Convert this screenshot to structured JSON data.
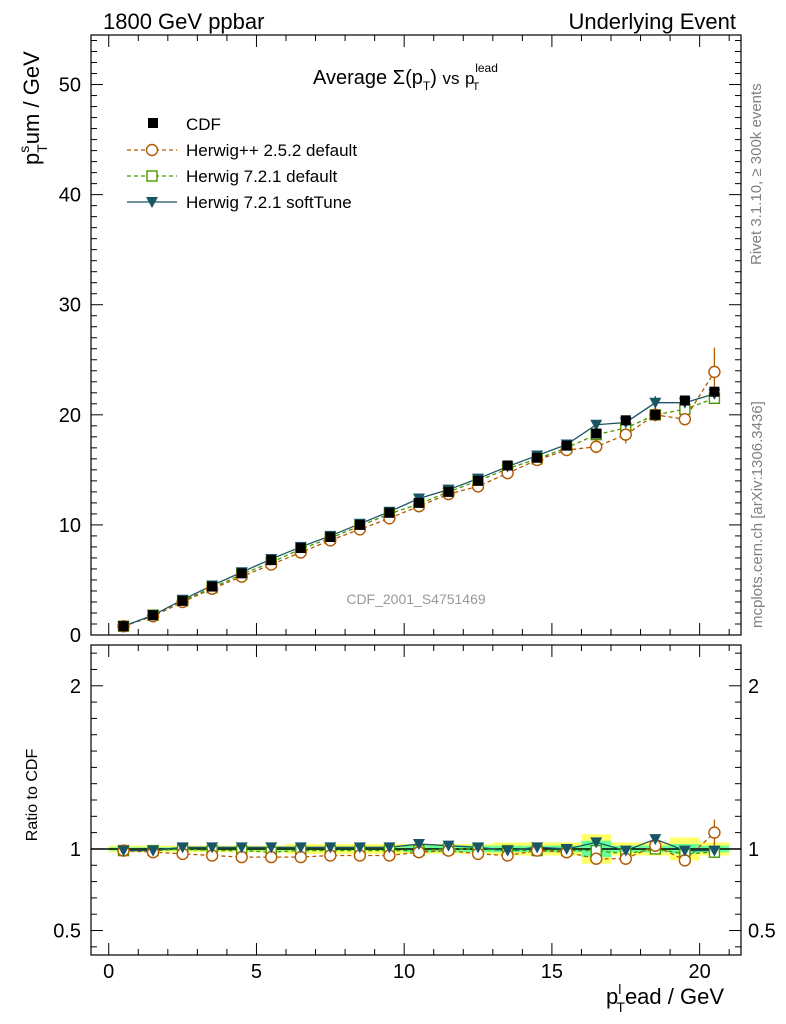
{
  "header": {
    "left": "1800 GeV ppbar",
    "right": "Underlying Event"
  },
  "side_labels": {
    "rivet": "Rivet 3.1.10, ≥ 300k events",
    "mcplots": "mcplots.cern.ch [arXiv:1306.3436]"
  },
  "watermark": "CDF_2001_S4751469",
  "colors": {
    "cdf": "#000000",
    "herwigpp": "#b35900",
    "herwig721": "#4d9900",
    "softtune": "#1a5566",
    "band_outer": "#ffff66",
    "band_inner": "#66ff99"
  },
  "chart_data": [
    {
      "type": "scatter",
      "panel": "main",
      "title": "Average Σ(p_T) vs p_T^lead",
      "title_parts": {
        "avg": "Average",
        "sigma": "Σ(p",
        "T": "T",
        "close": ")",
        "vs": "vs",
        "p": "p",
        "lead": "lead"
      },
      "ylabel": "p_T^sum / GeV",
      "ylabel_parts": {
        "p": "p",
        "sup": "s",
        "sub": "T",
        "rest": "um / GeV"
      },
      "xlim": [
        -0.6,
        21.4
      ],
      "ylim": [
        0,
        54.5
      ],
      "yticks": [
        0,
        10,
        20,
        30,
        40,
        50
      ],
      "ytick_labels": [
        "0",
        "10",
        "20",
        "30",
        "40",
        "50"
      ],
      "legend_position": "top-left",
      "x": [
        0.5,
        1.5,
        2.5,
        3.5,
        4.5,
        5.5,
        6.5,
        7.5,
        8.5,
        9.5,
        10.5,
        11.5,
        12.5,
        13.5,
        14.5,
        15.5,
        16.5,
        17.5,
        18.5,
        19.5,
        20.5
      ],
      "series": [
        {
          "name": "CDF",
          "marker": "square-filled",
          "values": [
            0.8,
            1.8,
            3.1,
            4.4,
            5.6,
            6.8,
            7.9,
            8.9,
            10.0,
            11.1,
            12.0,
            13.0,
            14.0,
            15.4,
            16.1,
            17.2,
            18.3,
            19.5,
            20.0,
            21.3,
            22.1
          ]
        },
        {
          "name": "Herwig++ 2.5.2 default",
          "marker": "circle-open",
          "dash": true,
          "values": [
            0.8,
            1.7,
            3.0,
            4.2,
            5.3,
            6.4,
            7.5,
            8.6,
            9.6,
            10.6,
            11.7,
            12.8,
            13.5,
            14.7,
            15.9,
            16.8,
            17.1,
            18.2,
            20.0,
            19.6,
            23.9
          ],
          "errors": [
            0,
            0,
            0,
            0,
            0,
            0,
            0,
            0,
            0,
            0,
            0,
            0,
            0,
            0,
            0,
            0,
            0.6,
            0.8,
            0.6,
            0.5,
            2.2
          ]
        },
        {
          "name": "Herwig 7.2.1 default",
          "marker": "square-open",
          "dash": true,
          "values": [
            0.8,
            1.8,
            3.1,
            4.3,
            5.5,
            6.6,
            7.8,
            8.8,
            9.9,
            11.0,
            11.9,
            13.0,
            14.0,
            15.1,
            16.0,
            17.0,
            18.2,
            18.8,
            20.0,
            20.5,
            21.5
          ]
        },
        {
          "name": "Herwig 7.2.1 softTune",
          "marker": "triangle-down-filled",
          "dash": false,
          "values": [
            0.8,
            1.8,
            3.2,
            4.5,
            5.7,
            6.9,
            8.0,
            9.0,
            10.1,
            11.2,
            12.4,
            13.2,
            14.2,
            15.3,
            16.3,
            17.3,
            19.1,
            19.3,
            21.1,
            21.1,
            21.9
          ],
          "errors": [
            0,
            0,
            0,
            0,
            0,
            0,
            0,
            0,
            0,
            0,
            0,
            0,
            0,
            0,
            0,
            0,
            0.3,
            0.3,
            0.6,
            0.3,
            0.3
          ]
        }
      ]
    },
    {
      "type": "line",
      "panel": "ratio",
      "ylabel": "Ratio to CDF",
      "xlabel": "p_T^lead / GeV",
      "xlabel_parts": {
        "p": "p",
        "sup": "l",
        "sub": "T",
        "rest": "ead / GeV"
      },
      "xlim": [
        -0.6,
        21.4
      ],
      "ylim": [
        0.35,
        2.25
      ],
      "yticks": [
        0.5,
        1,
        2
      ],
      "ytick_labels": [
        "0.5",
        "1",
        "2"
      ],
      "xticks": [
        0,
        5,
        10,
        15,
        20
      ],
      "xtick_labels": [
        "0",
        "5",
        "10",
        "15",
        "20"
      ],
      "x": [
        0.5,
        1.5,
        2.5,
        3.5,
        4.5,
        5.5,
        6.5,
        7.5,
        8.5,
        9.5,
        10.5,
        11.5,
        12.5,
        13.5,
        14.5,
        15.5,
        16.5,
        17.5,
        18.5,
        19.5,
        20.5
      ],
      "band_outer": [
        0.02,
        0.02,
        0.02,
        0.02,
        0.02,
        0.02,
        0.03,
        0.03,
        0.03,
        0.03,
        0.03,
        0.03,
        0.03,
        0.04,
        0.04,
        0.04,
        0.09,
        0.04,
        0.04,
        0.07,
        0.04
      ],
      "band_inner": [
        0.01,
        0.01,
        0.01,
        0.01,
        0.01,
        0.01,
        0.01,
        0.01,
        0.01,
        0.01,
        0.02,
        0.02,
        0.02,
        0.02,
        0.02,
        0.02,
        0.05,
        0.02,
        0.02,
        0.03,
        0.02
      ],
      "series": [
        {
          "name": "Herwig++ 2.5.2 default",
          "values": [
            0.99,
            0.98,
            0.97,
            0.96,
            0.95,
            0.95,
            0.95,
            0.96,
            0.96,
            0.96,
            0.98,
            0.99,
            0.97,
            0.96,
            0.99,
            0.98,
            0.94,
            0.94,
            1.02,
            0.93,
            1.1
          ],
          "errors": [
            0,
            0,
            0,
            0,
            0,
            0,
            0,
            0,
            0,
            0,
            0,
            0,
            0,
            0,
            0,
            0,
            0.03,
            0.03,
            0.03,
            0.02,
            0.08
          ]
        },
        {
          "name": "Herwig 7.2.1 default",
          "values": [
            0.99,
            0.99,
            1.0,
            0.99,
            0.99,
            0.98,
            0.99,
            0.99,
            0.99,
            0.99,
            0.99,
            1.0,
            1.0,
            0.99,
            0.99,
            0.99,
            0.99,
            0.97,
            1.0,
            0.97,
            0.98
          ]
        },
        {
          "name": "Herwig 7.2.1 softTune",
          "values": [
            0.99,
            0.99,
            1.01,
            1.01,
            1.01,
            1.01,
            1.01,
            1.01,
            1.01,
            1.01,
            1.03,
            1.02,
            1.01,
            0.99,
            1.01,
            1.0,
            1.04,
            0.99,
            1.06,
            0.99,
            0.99
          ],
          "errors": [
            0,
            0,
            0,
            0,
            0,
            0,
            0,
            0,
            0,
            0,
            0,
            0,
            0,
            0,
            0,
            0,
            0.02,
            0.02,
            0.03,
            0.02,
            0.02
          ]
        }
      ]
    }
  ]
}
